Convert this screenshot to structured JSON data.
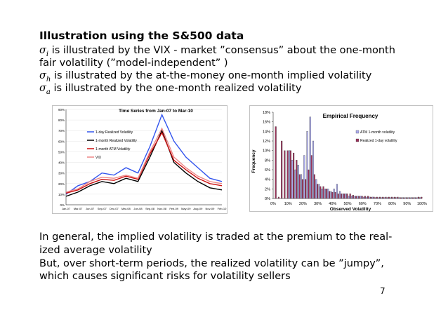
{
  "slide": {
    "title": "Illustration using the S&500 data",
    "bullets": [
      {
        "sym": "σ",
        "sub": "i",
        "text": " is illustrated by the VIX - market ”consensus” about the one-month"
      },
      {
        "sym": "",
        "sub": "",
        "text": "fair volatility (”model-independent” )"
      },
      {
        "sym": "σ",
        "sub": "h",
        "text": "  is illustrated by the at-the-money one-month implied volatility"
      },
      {
        "sym": "σ",
        "sub": "a",
        "text": "  is illustrated by the one-month realized volatility"
      }
    ],
    "paragraph": [
      "In general, the implied volatility is traded at the premium to the real-",
      "ized average volatility",
      "But, over short-term periods, the realized volatility can be ”jumpy”,",
      "which causes significant risks for volatility sellers"
    ],
    "page_number": "7"
  },
  "chart_data": [
    {
      "type": "line",
      "title": "Time Series from Jan-07 to Mar-10",
      "xlabel": "",
      "ylabel": "",
      "ylim": [
        0,
        90
      ],
      "yticks": [
        "0%",
        "10%",
        "20%",
        "30%",
        "40%",
        "50%",
        "60%",
        "70%",
        "80%",
        "90%"
      ],
      "categories": [
        "Jan-07",
        "Mar-07",
        "Jun-07",
        "Sep-07",
        "Dec-07",
        "Mar-08",
        "Jun-08",
        "Sep-08",
        "Nov-08",
        "Feb-09",
        "May-09",
        "Aug-09",
        "Nov-09",
        "Feb-10"
      ],
      "legend_position": "upper-left",
      "series": [
        {
          "name": "1-day Realized Volatility",
          "color": "#3355ee",
          "values": [
            10,
            18,
            22,
            30,
            28,
            35,
            30,
            55,
            85,
            60,
            45,
            35,
            25,
            22
          ]
        },
        {
          "name": "1-month Realized Volatility",
          "color": "#000000",
          "values": [
            8,
            12,
            18,
            22,
            20,
            25,
            22,
            45,
            70,
            40,
            30,
            22,
            16,
            14
          ]
        },
        {
          "name": "1-month ATM Volatility",
          "color": "#cc1111",
          "values": [
            11,
            14,
            20,
            24,
            23,
            27,
            24,
            48,
            68,
            42,
            33,
            25,
            20,
            18
          ]
        },
        {
          "name": "VIX",
          "color": "#ee8888",
          "values": [
            12,
            15,
            22,
            26,
            25,
            28,
            25,
            50,
            72,
            45,
            35,
            27,
            22,
            20
          ]
        }
      ]
    },
    {
      "type": "bar",
      "title": "Empirical Frequency",
      "xlabel": "Observed Volatility",
      "ylabel": "Frequency",
      "ylim": [
        0,
        18
      ],
      "yticks": [
        "0%",
        "2%",
        "4%",
        "6%",
        "8%",
        "10%",
        "12%",
        "14%",
        "16%",
        "18%"
      ],
      "xticks": [
        "0%",
        "10%",
        "20%",
        "30%",
        "40%",
        "50%",
        "60%",
        "70%",
        "80%",
        "90%",
        "100%"
      ],
      "legend_position": "right",
      "categories": [
        "2%",
        "4%",
        "6%",
        "8%",
        "10%",
        "12%",
        "14%",
        "16%",
        "18%",
        "20%",
        "22%",
        "24%",
        "26%",
        "28%",
        "30%",
        "32%",
        "34%",
        "36%",
        "38%",
        "40%",
        "42%",
        "44%",
        "46%",
        "48%",
        "50%",
        "52%",
        "54%",
        "56%",
        "58%",
        "60%",
        "62%",
        "64%",
        "66%",
        "68%",
        "70%",
        "72%",
        "74%",
        "76%",
        "78%",
        "80%",
        "82%",
        "84%",
        "86%",
        "88%",
        "90%",
        "92%",
        "94%",
        "96%",
        "98%",
        "100%"
      ],
      "series": [
        {
          "name": "ATM 1-month volatility",
          "color": "#aaaaee",
          "values": [
            0,
            0,
            0,
            0,
            0,
            10,
            8,
            6,
            7,
            5,
            9,
            14,
            17,
            12,
            4,
            3,
            2,
            2,
            2,
            1.5,
            2,
            3,
            1.5,
            1,
            1,
            0.5,
            0.5,
            0.5,
            0.5,
            0.5,
            0.3,
            0.3,
            0.3,
            0.3,
            0.2,
            0.2,
            0.2,
            0.2,
            0.2,
            0.2,
            0.2,
            0.2,
            0.2,
            0.2,
            0.2,
            0.2,
            0.2,
            0.2,
            0.2,
            0.2
          ]
        },
        {
          "name": "Realized 1-day volatility",
          "color": "#99335a",
          "values": [
            15,
            0.3,
            12,
            10,
            10,
            10,
            9.5,
            8,
            5,
            4,
            4,
            6,
            9,
            5,
            3,
            2.5,
            2.5,
            2,
            1.5,
            1.3,
            1.3,
            1,
            1,
            1,
            1,
            1,
            0.7,
            0.5,
            0.5,
            0.5,
            0.5,
            0.5,
            0.3,
            0.3,
            0.3,
            0.3,
            0.3,
            0.3,
            0.3,
            0.3,
            0.3,
            0.3,
            0.2,
            0.2,
            0.2,
            0.2,
            0.2,
            0.2,
            0.3,
            0.3
          ]
        }
      ]
    }
  ]
}
